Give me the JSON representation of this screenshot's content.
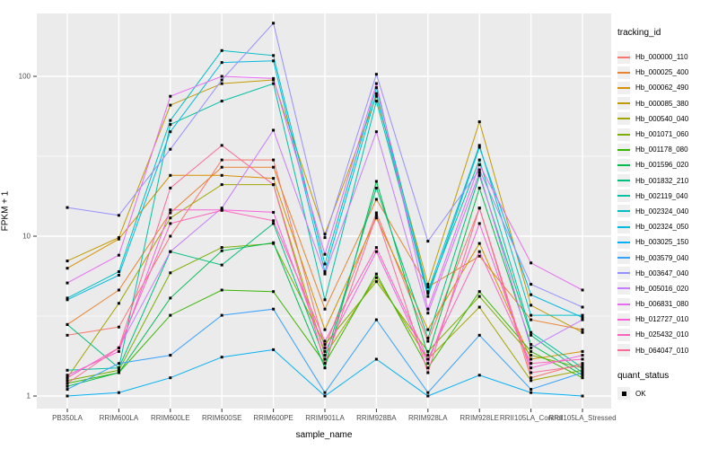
{
  "figure": {
    "colors": {
      "panel_bg": "#EBEBEB",
      "grid": "#FFFFFF",
      "tick_text": "#4D4D4D",
      "tick_mark": "#333333",
      "point": "#000000",
      "legend_key_bg": "#EFEFEF"
    },
    "legend": {
      "tracking_title": "tracking_id",
      "quant_title": "quant_status",
      "quant_items": [
        {
          "label": "OK",
          "marker": "black-square"
        }
      ]
    }
  },
  "chart_data": {
    "type": "line",
    "title": "",
    "xlabel": "sample_name",
    "ylabel": "FPKM + 1",
    "y_scale": "log10",
    "y_ticks": [
      1,
      10,
      100
    ],
    "ylim": [
      0.9,
      250
    ],
    "grid": true,
    "legend_position": "right",
    "point_marker": {
      "shape": "square",
      "color": "#000000",
      "status_label": "OK"
    },
    "categories": [
      "PB350LA",
      "RRIM600LA",
      "RRIM600LE",
      "RRIM600SE",
      "RRIM600PE",
      "RRIM901LA",
      "RRIM928BA",
      "RRIM928LA",
      "RRIM928LE",
      "RRII105LA_Control",
      "RRII105LA_Stressed"
    ],
    "series": [
      {
        "name": "Hb_000000_110",
        "color": "#F8766D",
        "values": [
          2.4,
          2.7,
          10,
          30,
          30,
          2.0,
          14,
          2.2,
          15,
          1.3,
          1.6
        ]
      },
      {
        "name": "Hb_000025_400",
        "color": "#EA8331",
        "values": [
          2.8,
          4.6,
          14,
          27,
          27,
          3.5,
          17,
          4.8,
          7.5,
          3.0,
          2.6
        ]
      },
      {
        "name": "Hb_000062_490",
        "color": "#D89000",
        "values": [
          6.3,
          9.6,
          24,
          24,
          23,
          2.6,
          13,
          2.6,
          9.0,
          1.7,
          1.9
        ]
      },
      {
        "name": "Hb_000085_380",
        "color": "#C09B00",
        "values": [
          7.0,
          9.8,
          66,
          90,
          95,
          10.3,
          75,
          5.0,
          52,
          3.7,
          2.5
        ]
      },
      {
        "name": "Hb_000540_040",
        "color": "#A3A500",
        "values": [
          1.3,
          3.8,
          13,
          21,
          21,
          1.8,
          5.5,
          1.7,
          3.6,
          1.25,
          1.45
        ]
      },
      {
        "name": "Hb_001071_060",
        "color": "#7CAE00",
        "values": [
          1.25,
          1.45,
          5.9,
          8.5,
          9.0,
          2.1,
          5.2,
          1.9,
          4.2,
          1.8,
          1.5
        ]
      },
      {
        "name": "Hb_001178_080",
        "color": "#39B600",
        "values": [
          1.2,
          1.4,
          3.2,
          4.6,
          4.5,
          1.6,
          5.8,
          1.5,
          4.5,
          1.9,
          1.3
        ]
      },
      {
        "name": "Hb_001596_020",
        "color": "#00BB4E",
        "values": [
          1.15,
          1.4,
          4.1,
          8.1,
          9.1,
          1.5,
          22,
          1.8,
          20,
          2.1,
          1.35
        ]
      },
      {
        "name": "Hb_001832_210",
        "color": "#00BF7D",
        "values": [
          2.8,
          1.5,
          8.0,
          6.6,
          12,
          1.7,
          20,
          2.3,
          24,
          2.4,
          1.4
        ]
      },
      {
        "name": "Hb_002119_040",
        "color": "#00C1A3",
        "values": [
          1.45,
          1.5,
          50,
          70,
          90,
          4.0,
          70,
          4.4,
          30,
          2.5,
          1.5
        ]
      },
      {
        "name": "Hb_002324_040",
        "color": "#00BFC4",
        "values": [
          4.1,
          6.0,
          53,
          145,
          135,
          6.7,
          85,
          4.5,
          37,
          3.2,
          3.2
        ]
      },
      {
        "name": "Hb_002324_050",
        "color": "#00BAE0",
        "values": [
          4.0,
          5.7,
          45,
          122,
          125,
          6.0,
          78,
          4.2,
          36,
          4.3,
          3.1
        ]
      },
      {
        "name": "Hb_003025_150",
        "color": "#00B0F6",
        "values": [
          1.0,
          1.05,
          1.3,
          1.75,
          1.95,
          1.0,
          1.7,
          1.0,
          1.35,
          1.05,
          1.0
        ]
      },
      {
        "name": "Hb_003579_040",
        "color": "#35A2FF",
        "values": [
          1.1,
          1.6,
          1.8,
          3.2,
          3.5,
          1.05,
          3.0,
          1.05,
          2.4,
          1.1,
          1.4
        ]
      },
      {
        "name": "Hb_003647_040",
        "color": "#9590FF",
        "values": [
          15.1,
          13.5,
          35,
          95,
          215,
          9.8,
          103,
          9.3,
          26,
          5.0,
          3.6
        ]
      },
      {
        "name": "Hb_005016_020",
        "color": "#C77CFF",
        "values": [
          1.3,
          2.0,
          8.0,
          15,
          46,
          5.8,
          45,
          3.3,
          25,
          2.0,
          3.0
        ]
      },
      {
        "name": "Hb_006831_080",
        "color": "#E76BF3",
        "values": [
          5.1,
          7.6,
          75,
          100,
          97,
          7.7,
          90,
          3.5,
          28,
          6.8,
          4.6
        ]
      },
      {
        "name": "Hb_012727_010",
        "color": "#FA62DB",
        "values": [
          1.35,
          1.9,
          14.6,
          14.6,
          14.1,
          1.9,
          8.0,
          1.6,
          12,
          1.5,
          1.8
        ]
      },
      {
        "name": "Hb_025432_010",
        "color": "#FF62BC",
        "values": [
          1.3,
          2.0,
          12,
          14.5,
          12.5,
          2.2,
          8.5,
          1.7,
          8.0,
          1.6,
          1.7
        ]
      },
      {
        "name": "Hb_064047_010",
        "color": "#FF6A98",
        "values": [
          1.2,
          2.0,
          20,
          37,
          21,
          1.6,
          13.5,
          1.4,
          15,
          1.4,
          1.55
        ]
      }
    ]
  }
}
